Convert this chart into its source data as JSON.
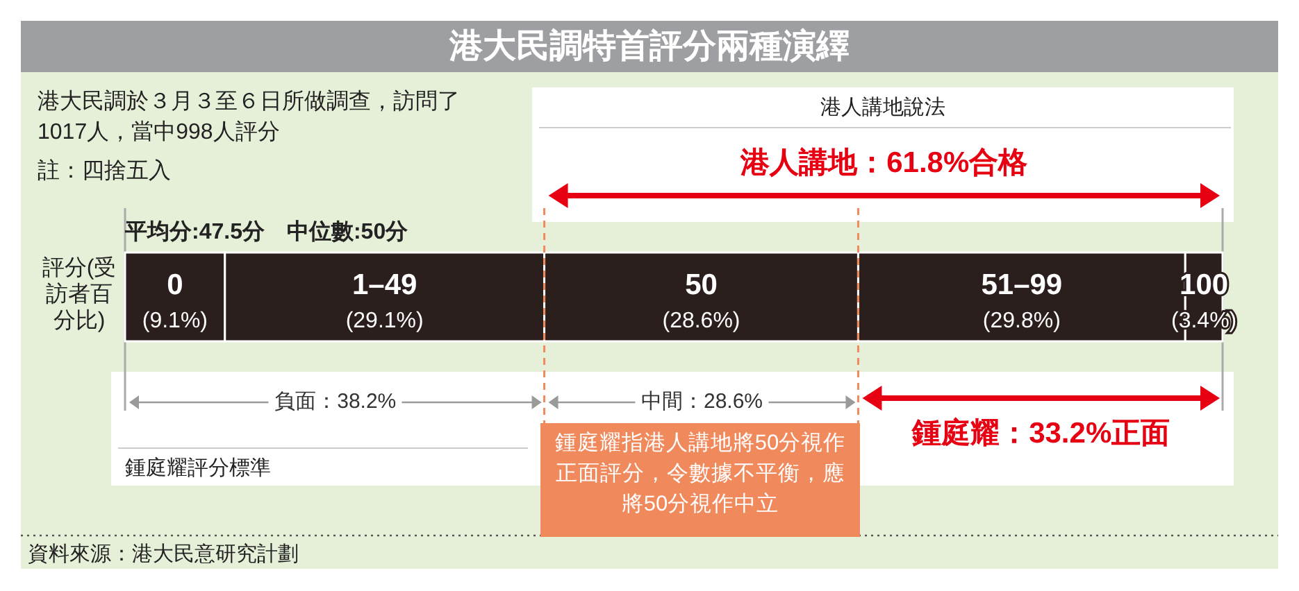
{
  "chart_data": {
    "type": "bar",
    "orientation": "horizontal",
    "stacked": true,
    "title": "港大民調特首評分兩種演繹",
    "categories": [
      "評分(受訪者百分比)"
    ],
    "xlim": [
      0,
      100
    ],
    "series": [
      {
        "name": "0",
        "color": "#2b1f1d",
        "values": [
          9.1
        ],
        "value_labels": [
          "(9.1%)"
        ]
      },
      {
        "name": "1–49",
        "color": "#2b1f1d",
        "values": [
          29.1
        ],
        "value_labels": [
          "(29.1%)"
        ]
      },
      {
        "name": "50",
        "color": "#2b1f1d",
        "values": [
          28.6
        ],
        "value_labels": [
          "(28.6%)"
        ]
      },
      {
        "name": "51–99",
        "color": "#2b1f1d",
        "values": [
          29.8
        ],
        "value_labels": [
          "(29.8%)"
        ]
      },
      {
        "name": "100",
        "color": "#2b1f1d",
        "values": [
          3.4
        ],
        "value_labels": [
          "(3.4%)"
        ]
      }
    ],
    "ref_lines": [
      {
        "axis": "x",
        "value": 38.2,
        "color": "#f08a5d",
        "line_style": "dashed"
      },
      {
        "axis": "x",
        "value": 66.8,
        "color": "#f08a5d",
        "line_style": "dashed"
      }
    ],
    "annotations": [
      "港人講地：61.8%合格",
      "負面：38.2%",
      "中間：28.6%",
      "鍾庭耀：33.2%正面",
      "港大民調於３月３至６日所做調查，訪問了1017人，當中998人評分",
      "註：四捨五入",
      "平均分:47.5分　中位數:50分",
      "港人講地說法",
      "鍾庭耀評分標準",
      "鍾庭耀指港人講地將50分視作正面評分，令數據不平衡，應將50分視作中立",
      "資料來源：港大民意研究計劃"
    ]
  }
}
